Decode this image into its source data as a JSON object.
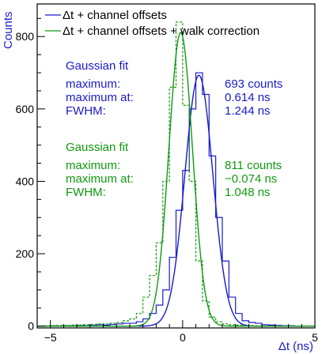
{
  "chart_data": {
    "type": "line",
    "title": "",
    "xlabel": "Δt  (ns)",
    "ylabel": "Counts",
    "xlim": [
      -5.5,
      5
    ],
    "ylim": [
      -5,
      890
    ],
    "x_ticks": [
      -5,
      0,
      5
    ],
    "x_tick_labels": [
      "−5",
      "0",
      "5"
    ],
    "y_ticks": [
      0,
      200,
      400,
      600,
      800
    ],
    "y_tick_labels": [
      "0",
      "200",
      "400",
      "600",
      "800"
    ],
    "grid": false,
    "legend_position": "top",
    "colors": {
      "series1": "#1a1acc",
      "series2": "#119911",
      "axis_title": "#1a1acc"
    },
    "series": [
      {
        "name": "Δt + channel offsets",
        "style": "solid histogram",
        "bin_edges": [
          -5.5,
          -5.25,
          -5.0,
          -4.75,
          -4.5,
          -4.25,
          -4.0,
          -3.75,
          -3.5,
          -3.25,
          -3.0,
          -2.75,
          -2.5,
          -2.25,
          -2.0,
          -1.75,
          -1.5,
          -1.25,
          -1.0,
          -0.75,
          -0.5,
          -0.25,
          0.0,
          0.25,
          0.5,
          0.75,
          1.0,
          1.25,
          1.5,
          1.75,
          2.0,
          2.25,
          2.5,
          2.75,
          3.0,
          3.25,
          3.5,
          3.75,
          4.0,
          4.25,
          4.5,
          4.75,
          5.0
        ],
        "values": [
          0,
          0,
          1,
          0,
          1,
          1,
          2,
          1,
          2,
          4,
          3,
          5,
          6,
          8,
          8,
          12,
          20,
          35,
          58,
          100,
          190,
          320,
          430,
          600,
          700,
          640,
          470,
          300,
          180,
          80,
          35,
          15,
          10,
          8,
          4,
          3,
          2,
          1,
          1,
          0,
          0,
          0
        ]
      },
      {
        "name": "Δt + channel offsets + walk correction",
        "style": "dashed histogram",
        "bin_edges": [
          -5.5,
          -5.25,
          -5.0,
          -4.75,
          -4.5,
          -4.25,
          -4.0,
          -3.75,
          -3.5,
          -3.25,
          -3.0,
          -2.75,
          -2.5,
          -2.25,
          -2.0,
          -1.75,
          -1.5,
          -1.25,
          -1.0,
          -0.75,
          -0.5,
          -0.25,
          0.0,
          0.25,
          0.5,
          0.75,
          1.0,
          1.25,
          1.5,
          1.75,
          2.0,
          2.25,
          2.5,
          2.75,
          3.0,
          3.25,
          3.5,
          3.75,
          4.0,
          4.25,
          4.5,
          4.75,
          5.0
        ],
        "values": [
          0,
          1,
          1,
          2,
          2,
          3,
          3,
          4,
          5,
          6,
          6,
          8,
          10,
          15,
          20,
          35,
          80,
          140,
          230,
          400,
          660,
          840,
          610,
          400,
          180,
          70,
          25,
          12,
          6,
          4,
          3,
          2,
          1,
          1,
          0,
          0,
          0,
          0,
          0,
          0,
          0,
          0
        ]
      }
    ],
    "fits": [
      {
        "name": "Gaussian fit",
        "color": "series1",
        "amplitude": 693,
        "mean": 0.614,
        "fwhm": 1.244
      },
      {
        "name": "Gaussian fit",
        "color": "series2",
        "amplitude": 811,
        "mean": -0.074,
        "fwhm": 1.048
      }
    ],
    "annotations": [
      {
        "title": "Gaussian fit",
        "labels": [
          "maximum:",
          "maximum at:",
          "FWHM:"
        ],
        "values": [
          "693 counts",
          "0.614 ns",
          "1.244 ns"
        ]
      },
      {
        "title": "Gaussian fit",
        "labels": [
          "maximum:",
          "maximum at:",
          "FWHM:"
        ],
        "values": [
          "811 counts",
          "−0.074 ns",
          "1.048 ns"
        ]
      }
    ]
  }
}
